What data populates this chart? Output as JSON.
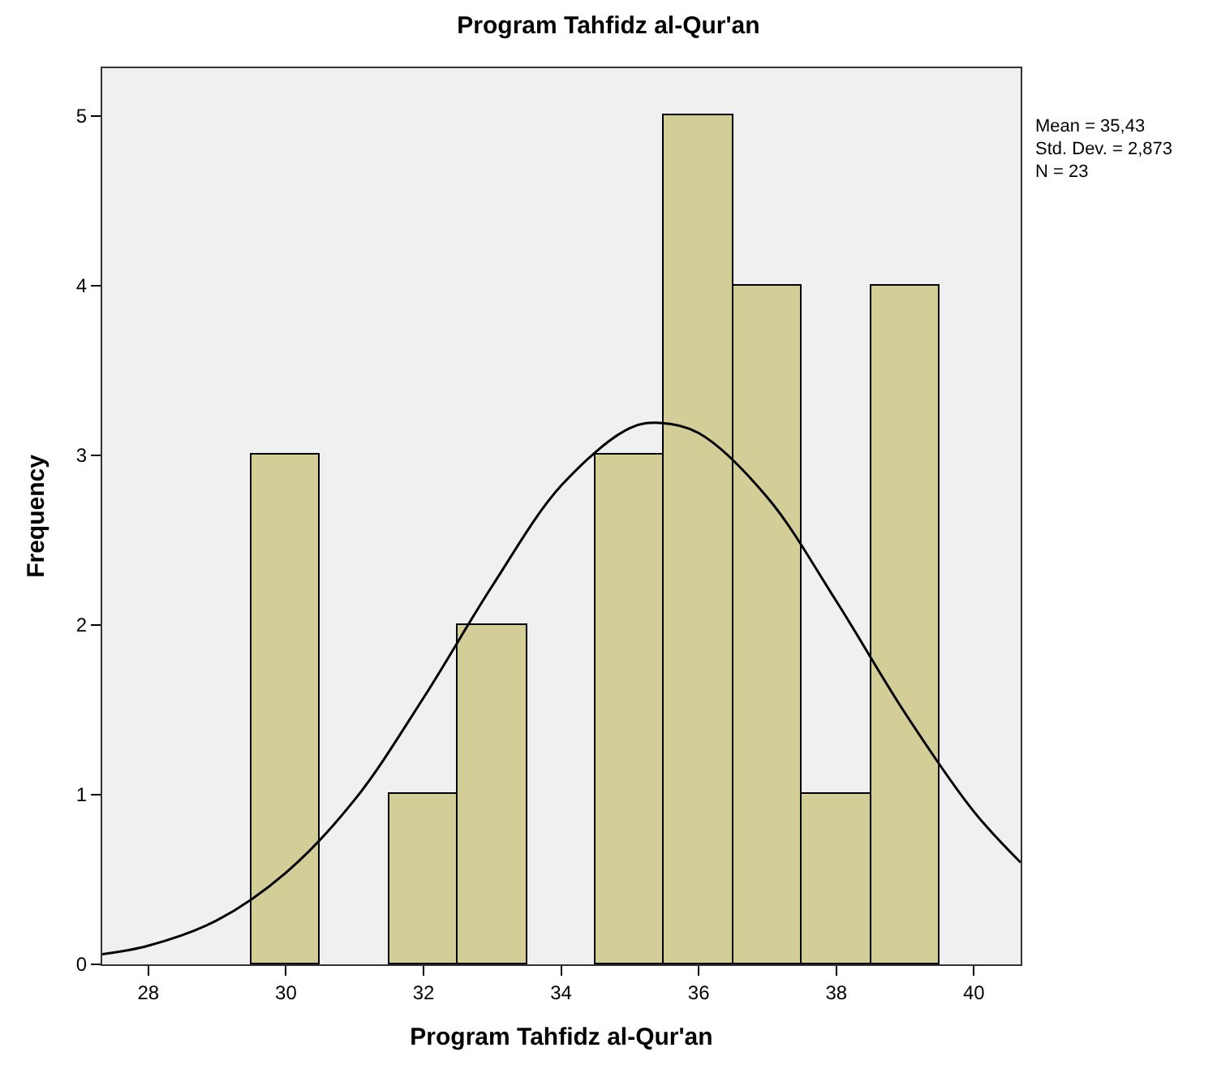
{
  "chart_data": {
    "type": "histogram",
    "title": "Program Tahfidz al-Qur'an",
    "xlabel": "Program Tahfidz al-Qur'an",
    "ylabel": "Frequency",
    "bins": [
      29.5,
      30.5,
      31.5,
      32.5,
      33.5,
      34.5,
      35.5,
      36.5,
      37.5,
      38.5,
      39.5
    ],
    "values": [
      3,
      0,
      1,
      2,
      0,
      3,
      5,
      4,
      1,
      4
    ],
    "color": "#d3ce97",
    "series": [
      {
        "type": "line",
        "color": "#000000",
        "x": [
          27.33,
          28,
          29,
          30,
          31,
          32,
          33,
          34,
          35,
          35.43,
          36,
          37,
          38,
          39,
          40,
          40.68
        ],
        "values": [
          0.06,
          0.11,
          0.26,
          0.54,
          0.97,
          1.57,
          2.23,
          2.82,
          3.16,
          3.19,
          3.13,
          2.75,
          2.14,
          1.48,
          0.9,
          0.6
        ]
      }
    ],
    "xlim": [
      27.33,
      40.68
    ],
    "xticks": [
      28,
      30,
      32,
      34,
      36,
      38,
      40
    ],
    "ylim": [
      0,
      5.28
    ],
    "yticks": [
      0,
      1,
      2,
      3,
      4,
      5
    ],
    "grid": false,
    "annotations": [
      "Mean = 35,43",
      "Std. Dev. = 2,873",
      "N = 23"
    ]
  }
}
